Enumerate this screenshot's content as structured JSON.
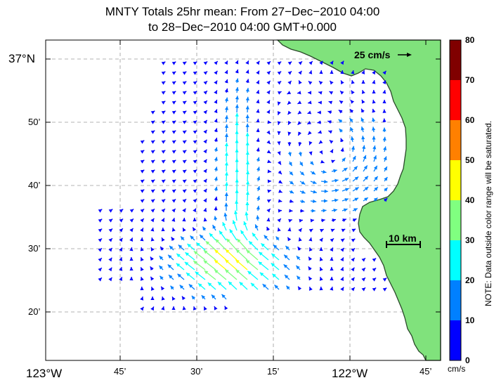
{
  "title": {
    "line1": "MNTY Totals 25hr mean: From 27−Dec−2010 04:00",
    "line2": "to 28−Dec−2010 04:00 GMT+0.000"
  },
  "map": {
    "lon_labels": [
      "123°W",
      "45’",
      "30’",
      "15’",
      "122°W",
      "45’"
    ],
    "lat_labels": [
      "37°N",
      "50’",
      "40’",
      "30’",
      "20’"
    ],
    "land_color": "#80e27c",
    "reference_vector": {
      "label": "25 cm/s",
      "speed_cm_s": 25
    },
    "scale_bar": {
      "label": "10 km",
      "length_km": 10
    }
  },
  "colorbar": {
    "unit": "cm/s",
    "tick_labels": [
      "0",
      "10",
      "20",
      "30",
      "40",
      "50",
      "60",
      "70",
      "80"
    ],
    "colors": [
      "#0000ff",
      "#0080ff",
      "#00ffff",
      "#80ff80",
      "#ffff00",
      "#ff8000",
      "#ff0000",
      "#800000"
    ],
    "note": "NOTE: Data outside color range will be saturated."
  }
}
